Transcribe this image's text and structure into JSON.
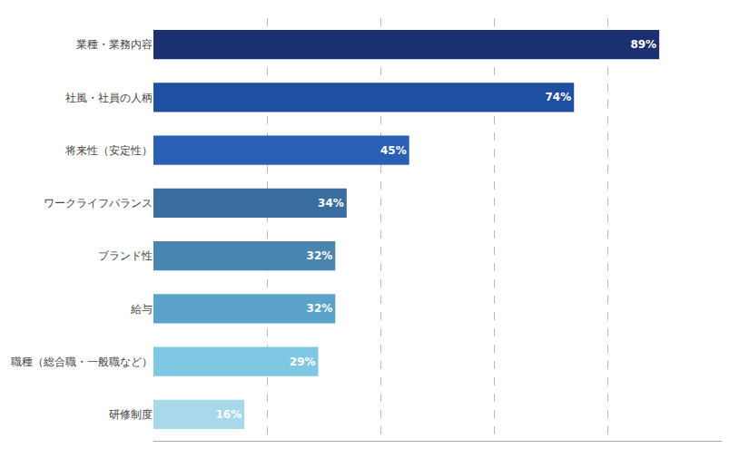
{
  "chart_data": {
    "type": "bar",
    "orientation": "horizontal",
    "categories": [
      "研修制度",
      "職種（総合職・一般職など）",
      "給与",
      "ブランド性",
      "ワークライフバランス",
      "将来性（安定性）",
      "社風・社員の人柄",
      "業種・業務内容"
    ],
    "values": [
      16,
      29,
      32,
      32,
      34,
      45,
      74,
      89
    ],
    "value_labels": [
      "16%",
      "29%",
      "32%",
      "32%",
      "34%",
      "45%",
      "74%",
      "89%"
    ],
    "data_labels": true,
    "colors": [
      "#a8d8ea",
      "#7ec8e3",
      "#5ba3c9",
      "#4a85b0",
      "#3a6ea0",
      "#2b5eb5",
      "#1e4fa0",
      "#1a3070"
    ],
    "xlim": [
      0,
      100
    ],
    "xticks": [
      20,
      40,
      60,
      80,
      100
    ],
    "grid": true,
    "tick_labels": "y"
  }
}
